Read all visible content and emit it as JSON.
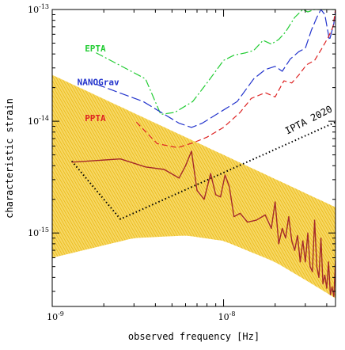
{
  "chart_data": {
    "type": "line",
    "xlabel": "observed frequency [Hz]",
    "ylabel": "characteristic strain",
    "xscale": "log",
    "yscale": "log",
    "xlim": [
      1e-09,
      4.5e-08
    ],
    "ylim": [
      2.2e-16,
      1e-13
    ],
    "x_ticks": [
      {
        "value": 1e-09,
        "base": "10",
        "exp": "-9"
      },
      {
        "value": 1e-08,
        "base": "10",
        "exp": "-8"
      }
    ],
    "y_ticks": [
      {
        "value": 1e-15,
        "base": "10",
        "exp": "-15"
      },
      {
        "value": 1e-14,
        "base": "10",
        "exp": "-14"
      },
      {
        "value": 1e-13,
        "base": "10",
        "exp": "-13"
      }
    ],
    "band": {
      "color": "#f2c318",
      "upper": [
        [
          1e-09,
          2.6e-14
        ],
        [
          4.5e-08,
          1.7e-15
        ]
      ],
      "lower": [
        [
          1e-09,
          6e-16
        ],
        [
          3e-09,
          9e-16
        ],
        [
          6e-09,
          9.5e-16
        ],
        [
          1e-08,
          8.5e-16
        ],
        [
          2e-08,
          5.5e-16
        ],
        [
          3e-08,
          3.8e-16
        ],
        [
          4.5e-08,
          2.6e-16
        ]
      ]
    },
    "series": [
      {
        "name": "EPTA",
        "color": "#22cc33",
        "dash": "10 3 2 3",
        "x": [
          1.8e-09,
          3.5e-09,
          4.3e-09,
          5.2e-09,
          6.6e-09,
          8e-09,
          1e-08,
          1.15e-08,
          1.35e-08,
          1.5e-08,
          1.7e-08,
          1.9e-08,
          2.1e-08,
          2.3e-08,
          2.6e-08,
          2.9e-08,
          3.1e-08,
          3.4e-08,
          3.7e-08,
          4e-08,
          4.5e-08
        ],
        "y": [
          4.1e-14,
          2.4e-14,
          1.15e-14,
          1.2e-14,
          1.5e-14,
          2.2e-14,
          3.5e-14,
          3.9e-14,
          4.1e-14,
          4.3e-14,
          5.3e-14,
          4.9e-14,
          5.4e-14,
          6.3e-14,
          8.5e-14,
          1e-13,
          9.5e-14,
          1e-13,
          1e-13,
          1e-13,
          1e-13
        ]
      },
      {
        "name": "NANOGrav",
        "color": "#2233cc",
        "dash": "12 4",
        "x": [
          1.8e-09,
          3.4e-09,
          5.5e-09,
          6.5e-09,
          7.5e-09,
          1.2e-08,
          1.5e-08,
          1.75e-08,
          2e-08,
          2.2e-08,
          2.45e-08,
          2.75e-08,
          3e-08,
          3.25e-08,
          3.5e-08,
          3.7e-08,
          3.9e-08,
          4.15e-08,
          4.4e-08,
          4.5e-08
        ],
        "y": [
          2.15e-14,
          1.5e-14,
          9.6e-15,
          8.8e-15,
          9.6e-15,
          1.5e-14,
          2.4e-14,
          2.9e-14,
          3.1e-14,
          2.8e-14,
          3.6e-14,
          4.2e-14,
          4.5e-14,
          6.5e-14,
          8.5e-14,
          1e-13,
          9e-14,
          5.3e-14,
          7.5e-14,
          1e-13
        ]
      },
      {
        "name": "PPTA",
        "color": "#dd2222",
        "dash": "7 4",
        "x": [
          3.1e-09,
          4.1e-09,
          5.4e-09,
          6.6e-09,
          8e-09,
          1e-08,
          1.25e-08,
          1.45e-08,
          1.75e-08,
          2e-08,
          2.25e-08,
          2.5e-08,
          2.75e-08,
          3.05e-08,
          3.4e-08,
          3.75e-08,
          4.1e-08,
          4.35e-08,
          4.5e-08
        ],
        "y": [
          9.8e-15,
          6.3e-15,
          5.8e-15,
          6.4e-15,
          7.2e-15,
          8.8e-15,
          1.2e-14,
          1.6e-14,
          1.8e-14,
          1.65e-14,
          2.3e-14,
          2.2e-14,
          2.6e-14,
          3.2e-14,
          3.5e-14,
          4.5e-14,
          5.7e-14,
          7e-14,
          1e-13
        ]
      },
      {
        "name": "IPTA 2020",
        "color": "#000000",
        "dash": "1.5 3",
        "x": [
          1.3e-09,
          2.5e-09,
          4.5e-08
        ],
        "y": [
          4.4e-15,
          1.33e-15,
          9.8e-15
        ]
      },
      {
        "name": "",
        "color": "#a52a2a",
        "dash": "",
        "x": [
          1.3e-09,
          2.5e-09,
          3.5e-09,
          4.5e-09,
          5.5e-09,
          6e-09,
          6.5e-09,
          7e-09,
          7.7e-09,
          8.4e-09,
          9e-09,
          9.6e-09,
          1.02e-08,
          1.08e-08,
          1.15e-08,
          1.25e-08,
          1.38e-08,
          1.55e-08,
          1.75e-08,
          1.9e-08,
          2e-08,
          2.1e-08,
          2.2e-08,
          2.3e-08,
          2.4e-08,
          2.5e-08,
          2.6e-08,
          2.7e-08,
          2.8e-08,
          2.9e-08,
          3e-08,
          3.1e-08,
          3.2e-08,
          3.3e-08,
          3.4e-08,
          3.5e-08,
          3.6e-08,
          3.7e-08,
          3.8e-08,
          3.9e-08,
          4e-08,
          4.1e-08,
          4.2e-08,
          4.3e-08,
          4.4e-08,
          4.5e-08
        ],
        "y": [
          4.3e-15,
          4.6e-15,
          3.9e-15,
          3.7e-15,
          3.1e-15,
          4e-15,
          5.4e-15,
          2.4e-15,
          2e-15,
          3.4e-15,
          2.2e-15,
          2.1e-15,
          3.3e-15,
          2.6e-15,
          1.4e-15,
          1.5e-15,
          1.25e-15,
          1.3e-15,
          1.45e-15,
          1.1e-15,
          1.9e-15,
          8e-16,
          1.1e-15,
          9e-16,
          1.4e-15,
          8.5e-16,
          7e-16,
          9.5e-16,
          5.5e-16,
          8.5e-16,
          5.5e-16,
          1e-15,
          5e-16,
          4.5e-16,
          1.3e-15,
          5e-16,
          4e-16,
          9e-16,
          3.5e-16,
          4.2e-16,
          3.2e-16,
          5.5e-16,
          2.8e-16,
          3.3e-16,
          2.7e-16,
          5.6e-16
        ]
      }
    ],
    "labels": [
      {
        "text": "EPTA",
        "color": "#22cc33",
        "x": 1.55e-09,
        "y": 4.2e-14
      },
      {
        "text": "NANOGrav",
        "color": "#2233cc",
        "x": 1.4e-09,
        "y": 2.1e-14
      },
      {
        "text": "PPTA",
        "color": "#dd2222",
        "x": 1.55e-09,
        "y": 1e-14
      }
    ],
    "annotation": {
      "text": "IPTA 2020",
      "x": 2.35e-08,
      "y": 7.6e-15,
      "angle": -27
    },
    "legend": "none",
    "grid": false
  }
}
